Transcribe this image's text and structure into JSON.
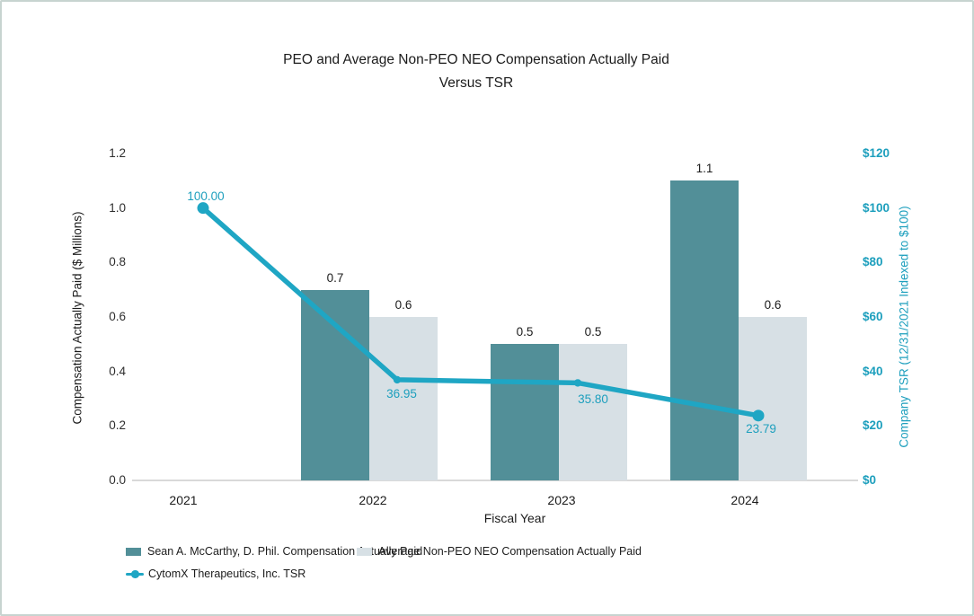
{
  "chart_data": {
    "type": "bar+line combo",
    "title_line1": "PEO and Average Non-PEO NEO Compensation Actually Paid",
    "title_line2": "Versus TSR",
    "xlabel": "Fiscal Year",
    "categories": [
      "2021",
      "2022",
      "2023",
      "2024"
    ],
    "bar_series": [
      {
        "key": "peo",
        "name": "Sean A. McCarthy, D. Phil. Compensation Actually Paid",
        "color": "#528f98",
        "values": [
          null,
          0.7,
          0.5,
          1.1
        ],
        "labels": [
          "",
          "0.7",
          "0.5",
          "1.1"
        ]
      },
      {
        "key": "nonpeo",
        "name": "Average Non-PEO NEO Compensation Actually Paid",
        "color": "#d7e0e5",
        "values": [
          null,
          0.6,
          0.5,
          0.6
        ],
        "labels": [
          "",
          "0.6",
          "0.5",
          "0.6"
        ]
      }
    ],
    "line_series": {
      "key": "tsr",
      "name": "CytomX Therapeutics, Inc. TSR",
      "color": "#1fa6c4",
      "values": [
        100.0,
        36.95,
        35.8,
        23.79
      ],
      "labels": [
        "100.00",
        "36.95",
        "35.80",
        "23.79"
      ]
    },
    "left_axis": {
      "title": "Compensation Actually Paid ($ Millions)",
      "min": 0,
      "max": 1.2,
      "ticks": [
        "0.0",
        "0.2",
        "0.4",
        "0.6",
        "0.8",
        "1.0",
        "1.2"
      ]
    },
    "right_axis": {
      "title": "Company TSR (12/31/2021 Indexed to $100)",
      "min": 0,
      "max": 120,
      "ticks": [
        "$0",
        "$20",
        "$40",
        "$60",
        "$80",
        "$100",
        "$120"
      ]
    },
    "legend_position": "bottom",
    "grid": "off",
    "colors": {
      "bar_dark": "#528f98",
      "bar_light": "#d7e0e5",
      "line_teal": "#1fa6c4",
      "teal_text": "#1d9fbd",
      "axis_line": "#d9d9d9"
    }
  }
}
